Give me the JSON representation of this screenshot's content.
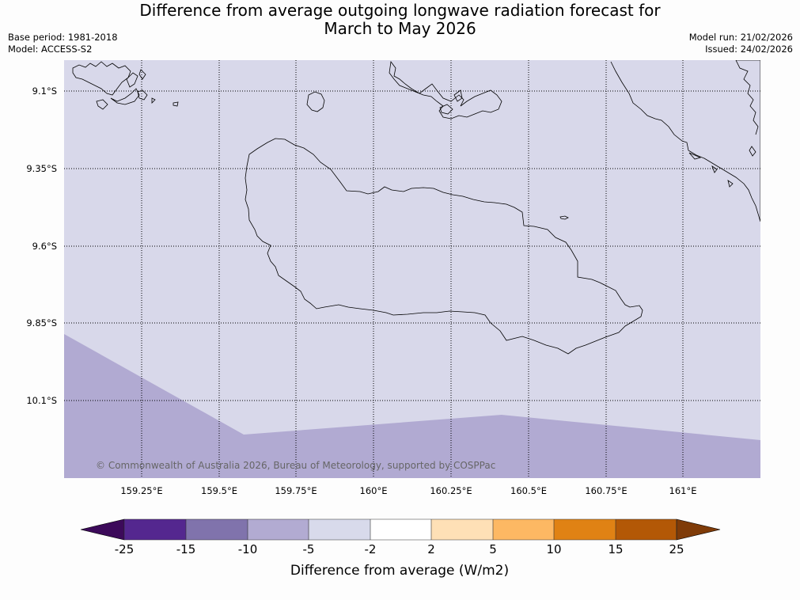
{
  "header": {
    "title_line1": "Difference from average outgoing longwave radiation forecast for",
    "title_line2": "March to May 2026",
    "base_period": "Base period: 1981-2018",
    "model": "Model: ACCESS-S2",
    "model_run": "Model run: 21/02/2026",
    "issued": "Issued: 24/02/2026"
  },
  "map": {
    "lat_labels": [
      "9.1°S",
      "9.35°S",
      "9.6°S",
      "9.85°S",
      "10.1°S"
    ],
    "lon_labels": [
      "159.25°E",
      "159.5°E",
      "159.75°E",
      "160°E",
      "160.25°E",
      "160.5°E",
      "160.75°E",
      "161°E"
    ],
    "copyright": "© Commonwealth of Australia 2026, Bureau of Meteorology, supported by COSPPac",
    "colors": {
      "background_class": "#d8d8ea",
      "lower_class": "#b1aad2",
      "coast": "#000000"
    }
  },
  "legend": {
    "ticks": [
      "-25",
      "-15",
      "-10",
      "-5",
      "-2",
      "2",
      "5",
      "10",
      "15",
      "25"
    ],
    "colors": [
      "#3c0a5a",
      "#54278f",
      "#8073ac",
      "#b2abd2",
      "#d8daeb",
      "#ffffff",
      "#fee0b6",
      "#fdb863",
      "#e08214",
      "#b35806",
      "#7f3b08"
    ],
    "label": "Difference from average (W/m2)"
  }
}
